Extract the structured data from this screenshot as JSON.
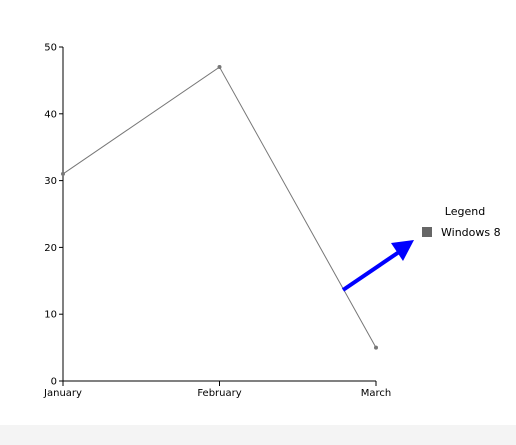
{
  "chart_data": {
    "type": "line",
    "categories": [
      "January",
      "February",
      "March"
    ],
    "series": [
      {
        "name": "Windows 8",
        "values": [
          31,
          47,
          5
        ],
        "color": "#777777"
      }
    ],
    "ylim": [
      0,
      50
    ],
    "yticks": [
      0,
      10,
      20,
      30,
      40,
      50
    ],
    "legend": {
      "title": "Legend",
      "placement": "right"
    },
    "grid": false
  },
  "annotation": {
    "type": "arrow",
    "color": "#0000ff",
    "points_to": "legend"
  }
}
